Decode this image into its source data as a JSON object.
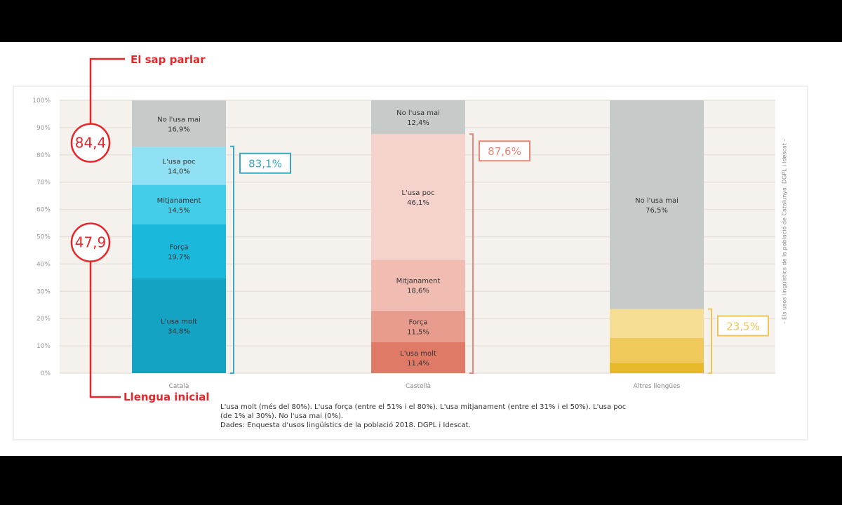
{
  "chart_data": {
    "type": "bar",
    "stacked": true,
    "categories": [
      "Català",
      "Castellà",
      "Altres llengües"
    ],
    "ylim": [
      0,
      100
    ],
    "yticks": [
      "0%",
      "10%",
      "20%",
      "30%",
      "40%",
      "50%",
      "60%",
      "70%",
      "80%",
      "90%",
      "100%"
    ],
    "series": [
      {
        "name": "L'usa molt",
        "values": [
          34.8,
          11.4,
          3.9
        ],
        "colors": [
          "#14a3c2",
          "#df7a67",
          "#e8b92a"
        ]
      },
      {
        "name": "Força",
        "values": [
          19.7,
          11.5,
          9.0
        ],
        "colors": [
          "#1ab9dc",
          "#e89c8d",
          "#efca5b"
        ]
      },
      {
        "name": "Mitjanament",
        "values": [
          14.5,
          18.6,
          10.6
        ],
        "colors": [
          "#44cde9",
          "#f1bcb1",
          "#f5dd94"
        ]
      },
      {
        "name": "L'usa poc",
        "values": [
          14.0,
          46.1,
          0
        ],
        "colors": [
          "#8fe1f3",
          "#f5d2cb",
          "#f5dd94"
        ]
      },
      {
        "name": "No l'usa mai",
        "values": [
          16.9,
          12.4,
          76.5
        ],
        "colors": [
          "#c6cbca",
          "#c6cbca",
          "#c6cbca"
        ]
      }
    ],
    "segment_labels": [
      [
        [
          "L'usa molt",
          "34,8%"
        ],
        [
          "Força",
          "19,7%"
        ],
        [
          "Mitjanament",
          "14,5%"
        ],
        [
          "L'usa poc",
          "14,0%"
        ],
        [
          "No l'usa mai",
          "16,9%"
        ]
      ],
      [
        [
          "L'usa molt",
          "11,4%"
        ],
        [
          "Força",
          "11,5%"
        ],
        [
          "Mitjanament",
          "18,6%"
        ],
        [
          "L'usa poc",
          "46,1%"
        ],
        [
          "No l'usa mai",
          "12,4%"
        ]
      ],
      [
        null,
        null,
        null,
        null,
        [
          "No l'usa mai",
          "76,5%"
        ]
      ]
    ],
    "brackets": [
      {
        "category": "Català",
        "from": 0,
        "to": 83.1,
        "label": "83,1%",
        "color": "#3aa7c4"
      },
      {
        "category": "Castellà",
        "from": 0,
        "to": 87.6,
        "label": "87,6%",
        "color": "#e8867a"
      },
      {
        "category": "Altres llengües",
        "from": 0,
        "to": 23.5,
        "label": "23,5%",
        "color": "#efc55a"
      }
    ],
    "annotations": {
      "speak_label": "El sap parlar",
      "speak_value": "84,4",
      "speak_at": 84.4,
      "initial_label": "Llengua inicial",
      "initial_value": "47,9",
      "initial_at": 47.9,
      "color": "#e8262a"
    }
  },
  "side_text": "- Els usos lingüístics de la població de Catalunya. DGPL i Idescat -",
  "notes": [
    "L'usa molt (més del 80%). L'usa força (entre el 51% i el 80%). L'usa mitjanament (entre el 31% i el 50%). L'usa poc (de 1% al 30%). No l'usa mai (0%).",
    "Dades: Enquesta d'usos lingüístics de la població 2018. DGPL i Idescat."
  ]
}
